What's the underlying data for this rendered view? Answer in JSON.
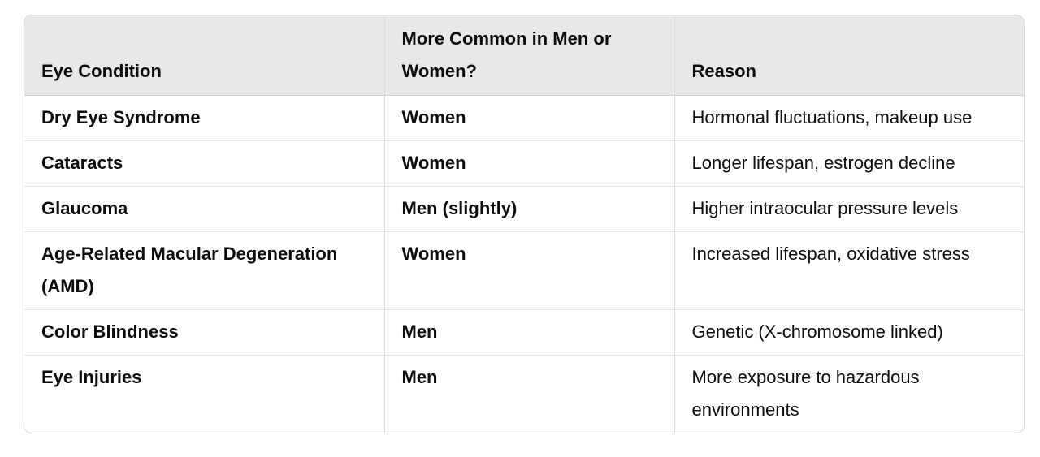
{
  "table": {
    "headers": [
      "Eye Condition",
      "More Common in Men or Women?",
      "Reason"
    ],
    "rows": [
      [
        "Dry Eye Syndrome",
        "Women",
        "Hormonal fluctuations, makeup use"
      ],
      [
        "Cataracts",
        "Women",
        "Longer lifespan, estrogen decline"
      ],
      [
        "Glaucoma",
        "Men (slightly)",
        "Higher intraocular pressure levels"
      ],
      [
        "Age-Related Macular Degeneration (AMD)",
        "Women",
        "Increased lifespan, oxidative stress"
      ],
      [
        "Color Blindness",
        "Men",
        "Genetic (X-chromosome linked)"
      ],
      [
        "Eye Injuries",
        "Men",
        "More exposure to hazardous environments"
      ]
    ]
  }
}
